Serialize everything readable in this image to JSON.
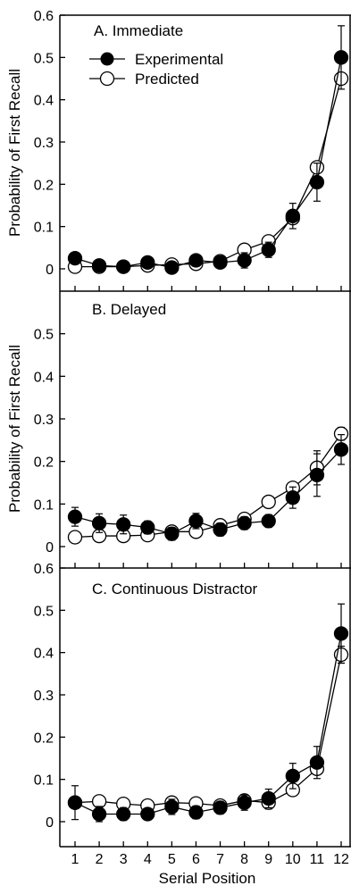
{
  "figure": {
    "xlabel": "Serial Position",
    "ylabel": "Probability of First Recall",
    "legend": {
      "experimental": "Experimental",
      "predicted": "Predicted"
    }
  },
  "chart_data": [
    {
      "type": "line",
      "title": "A. Immediate",
      "xlabel": "Serial Position",
      "ylabel": "Probability of First Recall",
      "x": [
        1,
        2,
        3,
        4,
        5,
        6,
        7,
        8,
        9,
        10,
        11,
        12
      ],
      "ylim": [
        0,
        0.6
      ],
      "yticks": [
        "0",
        "0.1",
        "0.2",
        "0.3",
        "0.4",
        "0.5",
        "0.6"
      ],
      "legend_position": "top-left",
      "series": [
        {
          "name": "Experimental",
          "marker": "filled-circle",
          "values": [
            0.025,
            0.008,
            0.005,
            0.015,
            0.003,
            0.02,
            0.015,
            0.02,
            0.045,
            0.125,
            0.205,
            0.5
          ],
          "err": [
            0.01,
            0.01,
            0.01,
            0.01,
            0.008,
            0.012,
            0.012,
            0.018,
            0.018,
            0.03,
            0.045,
            0.075
          ]
        },
        {
          "name": "Predicted",
          "marker": "open-circle",
          "values": [
            0.005,
            0.005,
            0.005,
            0.008,
            0.01,
            0.012,
            0.018,
            0.045,
            0.065,
            0.12,
            0.24,
            0.45
          ],
          "err": []
        }
      ]
    },
    {
      "type": "line",
      "title": "B. Delayed",
      "xlabel": "Serial Position",
      "ylabel": "Probability of First Recall",
      "x": [
        1,
        2,
        3,
        4,
        5,
        6,
        7,
        8,
        9,
        10,
        11,
        12
      ],
      "ylim": [
        0,
        0.6
      ],
      "yticks": [
        "0",
        "0.1",
        "0.2",
        "0.3",
        "0.4",
        "0.5"
      ],
      "series": [
        {
          "name": "Experimental",
          "marker": "filled-circle",
          "values": [
            0.07,
            0.055,
            0.052,
            0.045,
            0.03,
            0.06,
            0.04,
            0.055,
            0.06,
            0.115,
            0.168,
            0.228
          ],
          "err": [
            0.022,
            0.022,
            0.022,
            0.015,
            0.015,
            0.018,
            0.015,
            0.015,
            0.015,
            0.025,
            0.05,
            0.035
          ]
        },
        {
          "name": "Predicted",
          "marker": "open-circle",
          "values": [
            0.022,
            0.025,
            0.025,
            0.027,
            0.035,
            0.035,
            0.05,
            0.065,
            0.105,
            0.138,
            0.185,
            0.265
          ],
          "err": [
            0.0,
            0.012,
            0.012,
            0.012,
            0.012,
            0.012,
            0.012,
            0.01,
            0.0,
            0.01,
            0.04,
            0.015
          ]
        }
      ]
    },
    {
      "type": "line",
      "title": "C. Continuous Distractor",
      "xlabel": "Serial Position",
      "ylabel": "Probability of First Recall",
      "x": [
        1,
        2,
        3,
        4,
        5,
        6,
        7,
        8,
        9,
        10,
        11,
        12
      ],
      "xticks": [
        "1",
        "2",
        "3",
        "4",
        "5",
        "6",
        "7",
        "8",
        "9",
        "10",
        "11",
        "12"
      ],
      "ylim": [
        0,
        0.6
      ],
      "yticks": [
        "0",
        "0.1",
        "0.2",
        "0.3",
        "0.4",
        "0.5",
        "0.6"
      ],
      "series": [
        {
          "name": "Experimental",
          "marker": "filled-circle",
          "values": [
            0.045,
            0.018,
            0.018,
            0.018,
            0.035,
            0.022,
            0.033,
            0.045,
            0.055,
            0.108,
            0.14,
            0.445
          ],
          "err": [
            0.04,
            0.018,
            0.015,
            0.012,
            0.018,
            0.015,
            0.015,
            0.018,
            0.022,
            0.03,
            0.038,
            0.07
          ]
        },
        {
          "name": "Predicted",
          "marker": "open-circle",
          "values": [
            0.045,
            0.048,
            0.042,
            0.038,
            0.045,
            0.043,
            0.038,
            0.05,
            0.045,
            0.075,
            0.125,
            0.395
          ],
          "err": [
            0.0,
            0.0,
            0.0,
            0.0,
            0.01,
            0.0,
            0.01,
            0.0,
            0.015,
            0.0,
            0.0,
            0.02
          ]
        }
      ]
    }
  ]
}
